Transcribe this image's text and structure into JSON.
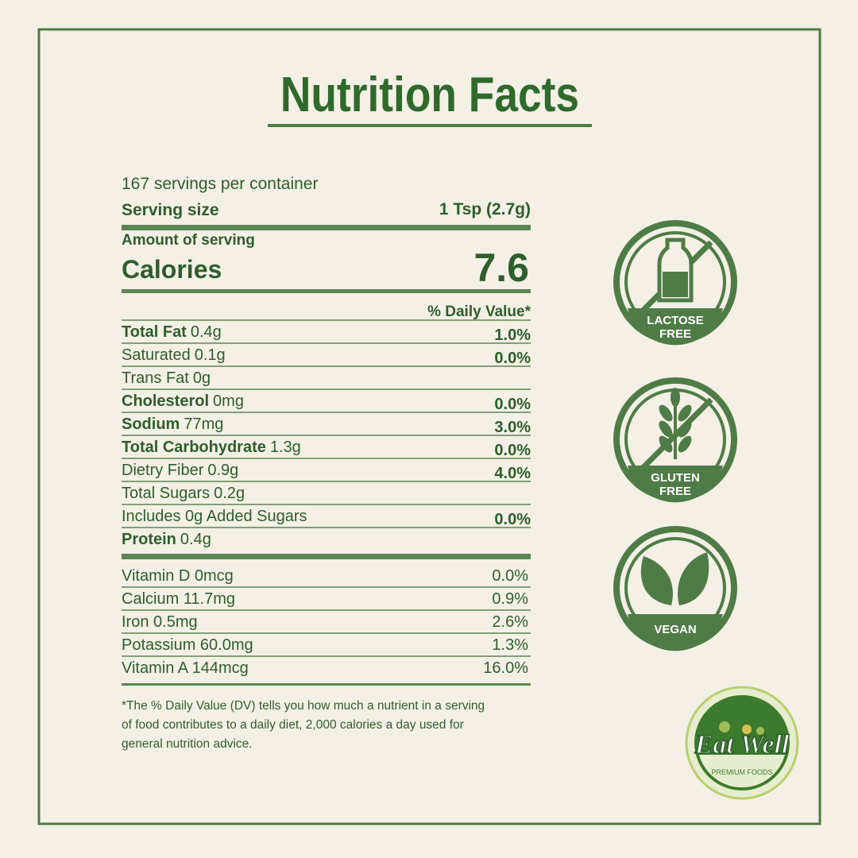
{
  "title": "Nutrition Facts",
  "servings": "167 servings per container",
  "serving_size": {
    "label": "Serving size",
    "value": "1 Tsp (2.7g)"
  },
  "amount_heading": "Amount of serving",
  "calories": {
    "label": "Calories",
    "value": "7.6"
  },
  "dv_heading": "% Daily Value*",
  "nutrients": [
    {
      "name": "Total Fat",
      "amount": "0.4g",
      "dv": "1.0%",
      "bold": true
    },
    {
      "name": "Saturated",
      "amount": "0.1g",
      "dv": "0.0%",
      "bold": false
    },
    {
      "name": "Trans Fat",
      "amount": "0g",
      "bold": false
    },
    {
      "name": "Cholesterol",
      "amount": "0mg",
      "dv": "0.0%",
      "bold": true
    },
    {
      "name": "Sodium",
      "amount": "77mg",
      "dv": "3.0%",
      "bold": true
    },
    {
      "name": "Total Carbohydrate",
      "amount": "1.3g",
      "dv": "0.0%",
      "bold": true
    },
    {
      "name": "Dietry Fiber",
      "amount": "0.9g",
      "dv": "4.0%",
      "bold": false
    },
    {
      "name": "Total Sugars",
      "amount": "0.2g",
      "bold": false
    },
    {
      "name": "Includes 0g Added Sugars",
      "amount": "",
      "dv": "0.0%",
      "bold": false
    },
    {
      "name": "Protein",
      "amount": "0.4g",
      "bold": true
    }
  ],
  "vitamins": [
    {
      "label": "Vitamin D 0mcg",
      "dv": "0.0%"
    },
    {
      "label": "Calcium 11.7mg",
      "dv": "0.9%"
    },
    {
      "label": "Iron 0.5mg",
      "dv": "2.6%"
    },
    {
      "label": "Potassium 60.0mg",
      "dv": "1.3%"
    },
    {
      "label": "Vitamin A 144mcg",
      "dv": "16.0%"
    }
  ],
  "footnote": [
    "*The % Daily Value (DV) tells you how much a nutrient in a serving",
    "of food contributes to a daily diet, 2,000 calories a day used for",
    "general nutrition advice."
  ],
  "badges": [
    [
      "LACTOSE",
      "FREE"
    ],
    [
      "GLUTEN",
      "FREE"
    ],
    [
      "VEGAN"
    ]
  ],
  "logo": {
    "name": "Eat Well",
    "tagline": "PREMIUM FOODS"
  }
}
